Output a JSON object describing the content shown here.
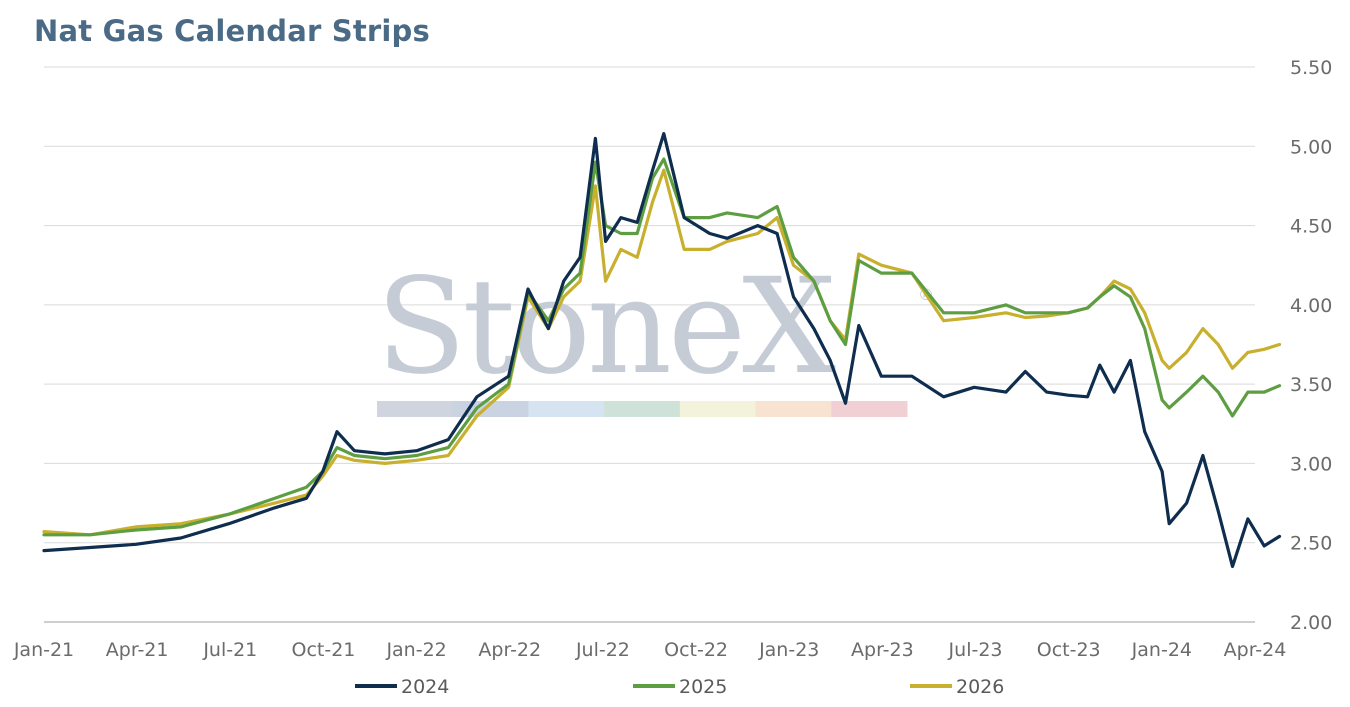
{
  "title": "Nat Gas Calendar Strips",
  "watermark": {
    "text": "StoneX",
    "mark": "®",
    "stripe_colors": [
      "#cfd4de",
      "#c9d3e2",
      "#d6e4f2",
      "#cfe2d8",
      "#f3f3db",
      "#f8e3d0",
      "#f0d0d4"
    ]
  },
  "chart_data": {
    "type": "line",
    "title": "Nat Gas Calendar Strips",
    "xlabel": "",
    "ylabel": "",
    "ylim": [
      2.0,
      5.5
    ],
    "yticks": [
      "2.00",
      "2.50",
      "3.00",
      "3.50",
      "4.00",
      "4.50",
      "5.00",
      "5.50"
    ],
    "yaxis_position": "right",
    "grid": true,
    "xticks": [
      "Jan-21",
      "Apr-21",
      "Jul-21",
      "Oct-21",
      "Jan-22",
      "Apr-22",
      "Jul-22",
      "Oct-22",
      "Jan-23",
      "Apr-23",
      "Jul-23",
      "Oct-23",
      "Jan-24",
      "Apr-24"
    ],
    "legend_position": "bottom",
    "series": [
      {
        "name": "2024",
        "color": "#0f2d4e",
        "points": [
          [
            "2021-01-01",
            2.45
          ],
          [
            "2021-02-15",
            2.47
          ],
          [
            "2021-04-01",
            2.49
          ],
          [
            "2021-05-15",
            2.53
          ],
          [
            "2021-07-01",
            2.62
          ],
          [
            "2021-08-15",
            2.72
          ],
          [
            "2021-09-15",
            2.78
          ],
          [
            "2021-10-01",
            2.95
          ],
          [
            "2021-10-15",
            3.2
          ],
          [
            "2021-11-01",
            3.08
          ],
          [
            "2021-12-01",
            3.06
          ],
          [
            "2022-01-01",
            3.08
          ],
          [
            "2022-02-01",
            3.15
          ],
          [
            "2022-03-01",
            3.42
          ],
          [
            "2022-04-01",
            3.55
          ],
          [
            "2022-04-20",
            4.1
          ],
          [
            "2022-05-10",
            3.85
          ],
          [
            "2022-05-25",
            4.15
          ],
          [
            "2022-06-10",
            4.3
          ],
          [
            "2022-06-25",
            5.05
          ],
          [
            "2022-07-05",
            4.4
          ],
          [
            "2022-07-20",
            4.55
          ],
          [
            "2022-08-05",
            4.52
          ],
          [
            "2022-08-20",
            4.85
          ],
          [
            "2022-08-31",
            5.08
          ],
          [
            "2022-09-20",
            4.55
          ],
          [
            "2022-10-15",
            4.45
          ],
          [
            "2022-11-01",
            4.42
          ],
          [
            "2022-12-01",
            4.5
          ],
          [
            "2022-12-20",
            4.45
          ],
          [
            "2023-01-05",
            4.05
          ],
          [
            "2023-01-25",
            3.85
          ],
          [
            "2023-02-10",
            3.65
          ],
          [
            "2023-02-25",
            3.38
          ],
          [
            "2023-03-10",
            3.87
          ],
          [
            "2023-04-01",
            3.55
          ],
          [
            "2023-05-01",
            3.55
          ],
          [
            "2023-06-01",
            3.42
          ],
          [
            "2023-07-01",
            3.48
          ],
          [
            "2023-08-01",
            3.45
          ],
          [
            "2023-08-20",
            3.58
          ],
          [
            "2023-09-10",
            3.45
          ],
          [
            "2023-10-01",
            3.43
          ],
          [
            "2023-10-20",
            3.42
          ],
          [
            "2023-11-01",
            3.62
          ],
          [
            "2023-11-15",
            3.45
          ],
          [
            "2023-12-01",
            3.65
          ],
          [
            "2023-12-15",
            3.2
          ],
          [
            "2024-01-01",
            2.95
          ],
          [
            "2024-01-08",
            2.62
          ],
          [
            "2024-01-25",
            2.75
          ],
          [
            "2024-02-10",
            3.05
          ],
          [
            "2024-02-25",
            2.7
          ],
          [
            "2024-03-10",
            2.35
          ],
          [
            "2024-03-25",
            2.65
          ],
          [
            "2024-04-10",
            2.48
          ],
          [
            "2024-04-25",
            2.54
          ]
        ]
      },
      {
        "name": "2025",
        "color": "#5e9e43",
        "points": [
          [
            "2021-01-01",
            2.55
          ],
          [
            "2021-02-15",
            2.55
          ],
          [
            "2021-04-01",
            2.58
          ],
          [
            "2021-05-15",
            2.6
          ],
          [
            "2021-07-01",
            2.68
          ],
          [
            "2021-08-15",
            2.78
          ],
          [
            "2021-09-15",
            2.85
          ],
          [
            "2021-10-01",
            2.95
          ],
          [
            "2021-10-15",
            3.1
          ],
          [
            "2021-11-01",
            3.05
          ],
          [
            "2021-12-01",
            3.03
          ],
          [
            "2022-01-01",
            3.05
          ],
          [
            "2022-02-01",
            3.1
          ],
          [
            "2022-03-01",
            3.35
          ],
          [
            "2022-04-01",
            3.5
          ],
          [
            "2022-04-20",
            4.08
          ],
          [
            "2022-05-10",
            3.9
          ],
          [
            "2022-05-25",
            4.1
          ],
          [
            "2022-06-10",
            4.2
          ],
          [
            "2022-06-25",
            4.9
          ],
          [
            "2022-07-05",
            4.5
          ],
          [
            "2022-07-20",
            4.45
          ],
          [
            "2022-08-05",
            4.45
          ],
          [
            "2022-08-20",
            4.8
          ],
          [
            "2022-08-31",
            4.92
          ],
          [
            "2022-09-20",
            4.55
          ],
          [
            "2022-10-15",
            4.55
          ],
          [
            "2022-11-01",
            4.58
          ],
          [
            "2022-12-01",
            4.55
          ],
          [
            "2022-12-20",
            4.62
          ],
          [
            "2023-01-05",
            4.3
          ],
          [
            "2023-01-25",
            4.15
          ],
          [
            "2023-02-10",
            3.9
          ],
          [
            "2023-02-25",
            3.75
          ],
          [
            "2023-03-10",
            4.28
          ],
          [
            "2023-04-01",
            4.2
          ],
          [
            "2023-05-01",
            4.2
          ],
          [
            "2023-06-01",
            3.95
          ],
          [
            "2023-07-01",
            3.95
          ],
          [
            "2023-08-01",
            4.0
          ],
          [
            "2023-08-20",
            3.95
          ],
          [
            "2023-09-10",
            3.95
          ],
          [
            "2023-10-01",
            3.95
          ],
          [
            "2023-10-20",
            3.98
          ],
          [
            "2023-11-01",
            4.05
          ],
          [
            "2023-11-15",
            4.12
          ],
          [
            "2023-12-01",
            4.05
          ],
          [
            "2023-12-15",
            3.85
          ],
          [
            "2024-01-01",
            3.4
          ],
          [
            "2024-01-08",
            3.35
          ],
          [
            "2024-01-25",
            3.45
          ],
          [
            "2024-02-10",
            3.55
          ],
          [
            "2024-02-25",
            3.45
          ],
          [
            "2024-03-10",
            3.3
          ],
          [
            "2024-03-25",
            3.45
          ],
          [
            "2024-04-10",
            3.45
          ],
          [
            "2024-04-25",
            3.49
          ]
        ]
      },
      {
        "name": "2026",
        "color": "#c8b02e",
        "points": [
          [
            "2021-01-01",
            2.57
          ],
          [
            "2021-02-15",
            2.55
          ],
          [
            "2021-04-01",
            2.6
          ],
          [
            "2021-05-15",
            2.62
          ],
          [
            "2021-07-01",
            2.68
          ],
          [
            "2021-08-15",
            2.75
          ],
          [
            "2021-09-15",
            2.8
          ],
          [
            "2021-10-01",
            2.92
          ],
          [
            "2021-10-15",
            3.05
          ],
          [
            "2021-11-01",
            3.02
          ],
          [
            "2021-12-01",
            3.0
          ],
          [
            "2022-01-01",
            3.02
          ],
          [
            "2022-02-01",
            3.05
          ],
          [
            "2022-03-01",
            3.3
          ],
          [
            "2022-04-01",
            3.48
          ],
          [
            "2022-04-20",
            4.05
          ],
          [
            "2022-05-10",
            3.85
          ],
          [
            "2022-05-25",
            4.05
          ],
          [
            "2022-06-10",
            4.15
          ],
          [
            "2022-06-25",
            4.75
          ],
          [
            "2022-07-05",
            4.15
          ],
          [
            "2022-07-20",
            4.35
          ],
          [
            "2022-08-05",
            4.3
          ],
          [
            "2022-08-20",
            4.65
          ],
          [
            "2022-08-31",
            4.85
          ],
          [
            "2022-09-20",
            4.35
          ],
          [
            "2022-10-15",
            4.35
          ],
          [
            "2022-11-01",
            4.4
          ],
          [
            "2022-12-01",
            4.45
          ],
          [
            "2022-12-20",
            4.55
          ],
          [
            "2023-01-05",
            4.25
          ],
          [
            "2023-01-25",
            4.15
          ],
          [
            "2023-02-10",
            3.9
          ],
          [
            "2023-02-25",
            3.78
          ],
          [
            "2023-03-10",
            4.32
          ],
          [
            "2023-04-01",
            4.25
          ],
          [
            "2023-05-01",
            4.2
          ],
          [
            "2023-06-01",
            3.9
          ],
          [
            "2023-07-01",
            3.92
          ],
          [
            "2023-08-01",
            3.95
          ],
          [
            "2023-08-20",
            3.92
          ],
          [
            "2023-09-10",
            3.93
          ],
          [
            "2023-10-01",
            3.95
          ],
          [
            "2023-10-20",
            3.98
          ],
          [
            "2023-11-01",
            4.05
          ],
          [
            "2023-11-15",
            4.15
          ],
          [
            "2023-12-01",
            4.1
          ],
          [
            "2023-12-15",
            3.95
          ],
          [
            "2024-01-01",
            3.65
          ],
          [
            "2024-01-08",
            3.6
          ],
          [
            "2024-01-25",
            3.7
          ],
          [
            "2024-02-10",
            3.85
          ],
          [
            "2024-02-25",
            3.75
          ],
          [
            "2024-03-10",
            3.6
          ],
          [
            "2024-03-25",
            3.7
          ],
          [
            "2024-04-10",
            3.72
          ],
          [
            "2024-04-25",
            3.75
          ]
        ]
      }
    ]
  }
}
